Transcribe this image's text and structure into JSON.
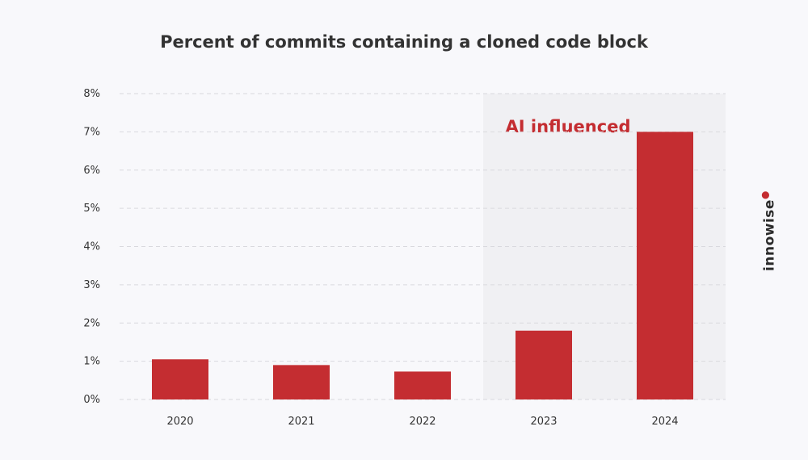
{
  "chart_data": {
    "type": "bar",
    "title": "Percent of commits containing a cloned code block",
    "xlabel": "",
    "ylabel": "",
    "categories": [
      "2020",
      "2021",
      "2022",
      "2023",
      "2024"
    ],
    "values": [
      1.05,
      0.9,
      0.73,
      1.8,
      7.0
    ],
    "ylim": [
      0,
      8
    ],
    "yticks": [
      0,
      1,
      2,
      3,
      4,
      5,
      6,
      7,
      8
    ],
    "ytick_suffix": "%",
    "grid": true,
    "highlight": {
      "label": "AI influenced",
      "from_category": "2023",
      "to_category": "2024"
    },
    "colors": {
      "bar": "#c42d31",
      "highlight_text": "#c42d31",
      "highlight_band": "#f0f0f3",
      "grid": "#d9d9de",
      "tick_text": "#333333"
    }
  },
  "brand": {
    "name": "innowise"
  }
}
